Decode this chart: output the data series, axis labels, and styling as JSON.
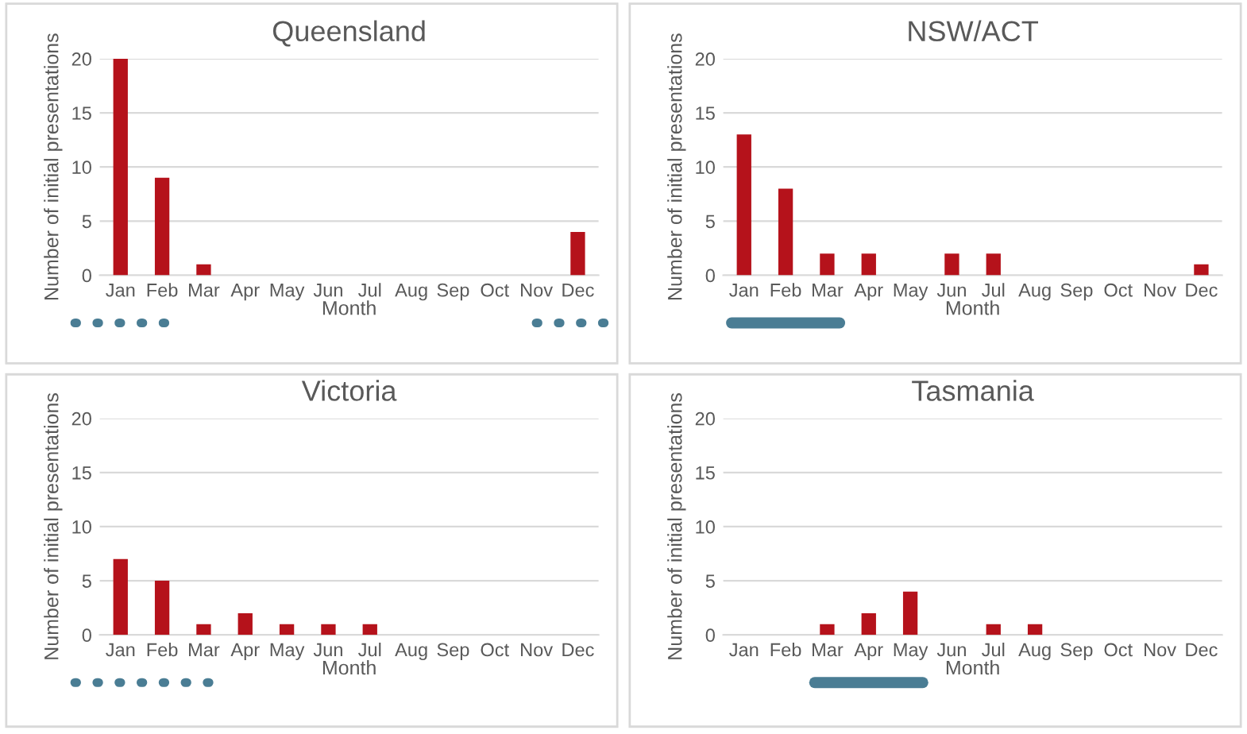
{
  "chart_data": [
    {
      "type": "bar",
      "title": "Queensland",
      "xlabel": "Month",
      "ylabel": "Number of initial presentations",
      "categories": [
        "Jan",
        "Feb",
        "Mar",
        "Apr",
        "May",
        "Jun",
        "Jul",
        "Aug",
        "Sep",
        "Oct",
        "Nov",
        "Dec"
      ],
      "values": [
        20,
        9,
        1,
        0,
        0,
        0,
        0,
        0,
        0,
        0,
        0,
        4
      ],
      "color": "#b5121b",
      "ylim": [
        0,
        20
      ],
      "yticks": [
        0,
        5,
        10,
        15,
        20
      ],
      "grid": "y"
    },
    {
      "type": "bar",
      "title": "NSW/ACT",
      "xlabel": "Month",
      "ylabel": "Number of initial presentations",
      "categories": [
        "Jan",
        "Feb",
        "Mar",
        "Apr",
        "May",
        "Jun",
        "Jul",
        "Aug",
        "Sep",
        "Oct",
        "Nov",
        "Dec"
      ],
      "values": [
        13,
        8,
        2,
        2,
        0,
        2,
        2,
        0,
        0,
        0,
        0,
        1
      ],
      "color": "#b5121b",
      "ylim": [
        0,
        20
      ],
      "yticks": [
        0,
        5,
        10,
        15,
        20
      ],
      "grid": "y"
    },
    {
      "type": "bar",
      "title": "Victoria",
      "xlabel": "Month",
      "ylabel": "Number of initial presentations",
      "categories": [
        "Jan",
        "Feb",
        "Mar",
        "Apr",
        "May",
        "Jun",
        "Jul",
        "Aug",
        "Sep",
        "Oct",
        "Nov",
        "Dec"
      ],
      "values": [
        7,
        5,
        1,
        2,
        1,
        1,
        1,
        0,
        0,
        0,
        0,
        0
      ],
      "color": "#b5121b",
      "ylim": [
        0,
        20
      ],
      "yticks": [
        0,
        5,
        10,
        15,
        20
      ],
      "grid": "y"
    },
    {
      "type": "bar",
      "title": "Tasmania",
      "xlabel": "Month",
      "ylabel": "Number of initial presentations",
      "categories": [
        "Jan",
        "Feb",
        "Mar",
        "Apr",
        "May",
        "Jun",
        "Jul",
        "Aug",
        "Sep",
        "Oct",
        "Nov",
        "Dec"
      ],
      "values": [
        0,
        0,
        1,
        2,
        4,
        0,
        1,
        1,
        0,
        0,
        0,
        0
      ],
      "color": "#b5121b",
      "ylim": [
        0,
        20
      ],
      "yticks": [
        0,
        5,
        10,
        15,
        20
      ],
      "grid": "y"
    }
  ]
}
